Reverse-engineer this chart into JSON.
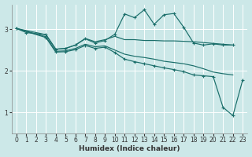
{
  "xlabel": "Humidex (Indice chaleur)",
  "bg_color": "#cce8e8",
  "grid_color": "#aad4d4",
  "line_color": "#1a6e6a",
  "xlim": [
    -0.5,
    23.5
  ],
  "ylim": [
    0.5,
    3.6
  ],
  "yticks": [
    1,
    2,
    3
  ],
  "xticks": [
    0,
    1,
    2,
    3,
    4,
    5,
    6,
    7,
    8,
    9,
    10,
    11,
    12,
    13,
    14,
    15,
    16,
    17,
    18,
    19,
    20,
    21,
    22,
    23
  ],
  "line1_x": [
    0,
    1,
    3,
    4,
    5,
    6,
    7,
    8,
    9,
    10,
    11,
    12,
    13,
    14,
    15,
    16,
    17,
    18,
    19,
    20,
    21,
    22
  ],
  "line1_y": [
    3.02,
    2.92,
    2.87,
    2.52,
    2.54,
    2.62,
    2.77,
    2.67,
    2.73,
    2.88,
    3.37,
    3.28,
    3.47,
    3.12,
    3.35,
    3.38,
    3.05,
    2.67,
    2.62,
    2.65,
    2.62,
    2.62
  ],
  "line2_x": [
    0,
    3,
    4,
    5,
    6,
    7,
    8,
    9,
    10,
    11,
    12,
    13,
    14,
    15,
    16,
    17,
    18,
    19,
    20,
    21,
    22
  ],
  "line2_y": [
    3.02,
    2.87,
    2.52,
    2.54,
    2.62,
    2.78,
    2.7,
    2.75,
    2.83,
    2.75,
    2.75,
    2.73,
    2.73,
    2.72,
    2.72,
    2.71,
    2.7,
    2.68,
    2.66,
    2.64,
    2.62
  ],
  "line3_x": [
    0,
    3,
    4,
    5,
    6,
    7,
    8,
    9,
    10,
    11,
    12,
    13,
    14,
    15,
    16,
    17,
    18,
    19,
    20,
    21,
    22
  ],
  "line3_y": [
    3.02,
    2.82,
    2.47,
    2.48,
    2.54,
    2.64,
    2.58,
    2.6,
    2.5,
    2.4,
    2.35,
    2.32,
    2.28,
    2.23,
    2.2,
    2.17,
    2.12,
    2.05,
    1.97,
    1.93,
    1.9
  ],
  "line4_x": [
    0,
    3,
    4,
    5,
    6,
    7,
    8,
    9,
    10,
    11,
    12,
    13,
    14,
    15,
    16,
    17,
    18,
    19,
    20,
    21,
    22,
    23
  ],
  "line4_y": [
    3.02,
    2.8,
    2.45,
    2.46,
    2.51,
    2.61,
    2.54,
    2.57,
    2.44,
    2.28,
    2.22,
    2.17,
    2.12,
    2.07,
    2.03,
    1.98,
    1.9,
    1.88,
    1.86,
    1.12,
    0.92,
    1.78
  ]
}
